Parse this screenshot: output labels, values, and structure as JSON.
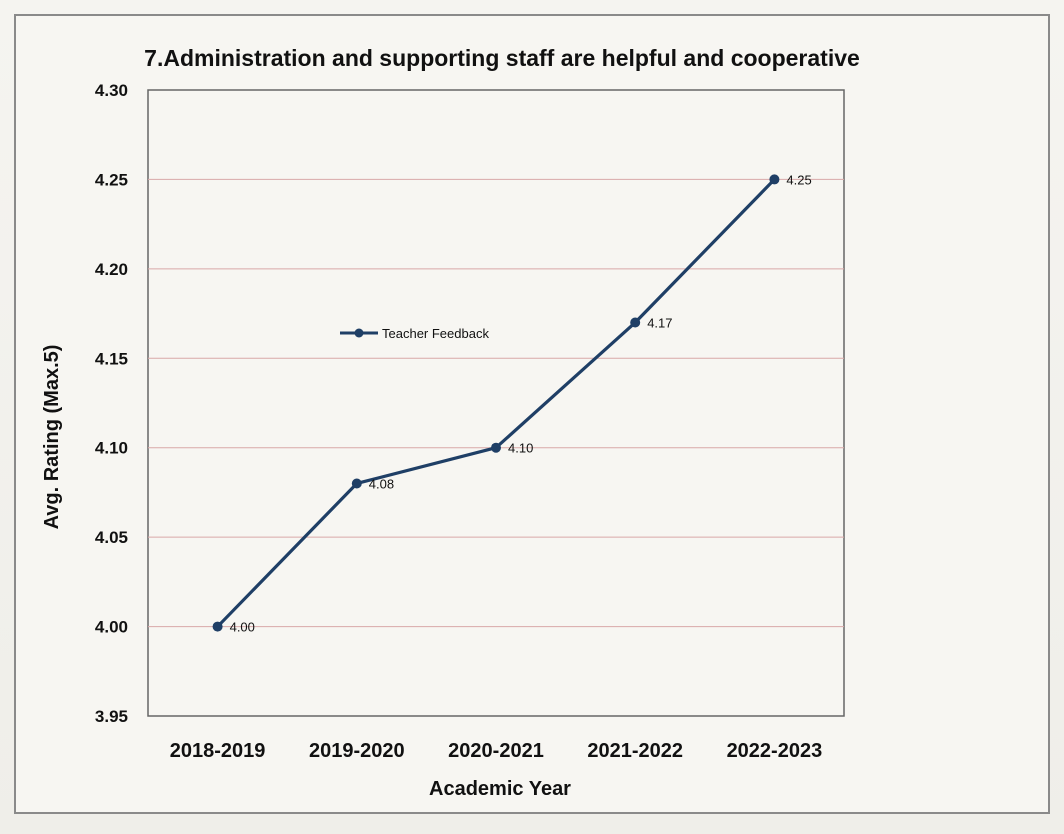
{
  "chart_data": {
    "type": "line",
    "title": "7.Administration and supporting staff are helpful and cooperative",
    "xlabel": "Academic Year",
    "ylabel": "Avg. Rating (Max.5)",
    "categories": [
      "2018-2019",
      "2019-2020",
      "2020-2021",
      "2021-2022",
      "2022-2023"
    ],
    "series": [
      {
        "name": "Teacher Feedback",
        "values": [
          4.0,
          4.08,
          4.1,
          4.17,
          4.25
        ],
        "labels": [
          "4.00",
          "4.08",
          "4.10",
          "4.17",
          "4.25"
        ],
        "color": "#1f3f66"
      }
    ],
    "ylim": [
      3.95,
      4.3
    ],
    "yticks": [
      "3.95",
      "4.00",
      "4.05",
      "4.10",
      "4.15",
      "4.20",
      "4.25",
      "4.30"
    ],
    "grid": true,
    "gridline_color": "#d9a8a8",
    "legend_position": "inside-upper-left"
  }
}
